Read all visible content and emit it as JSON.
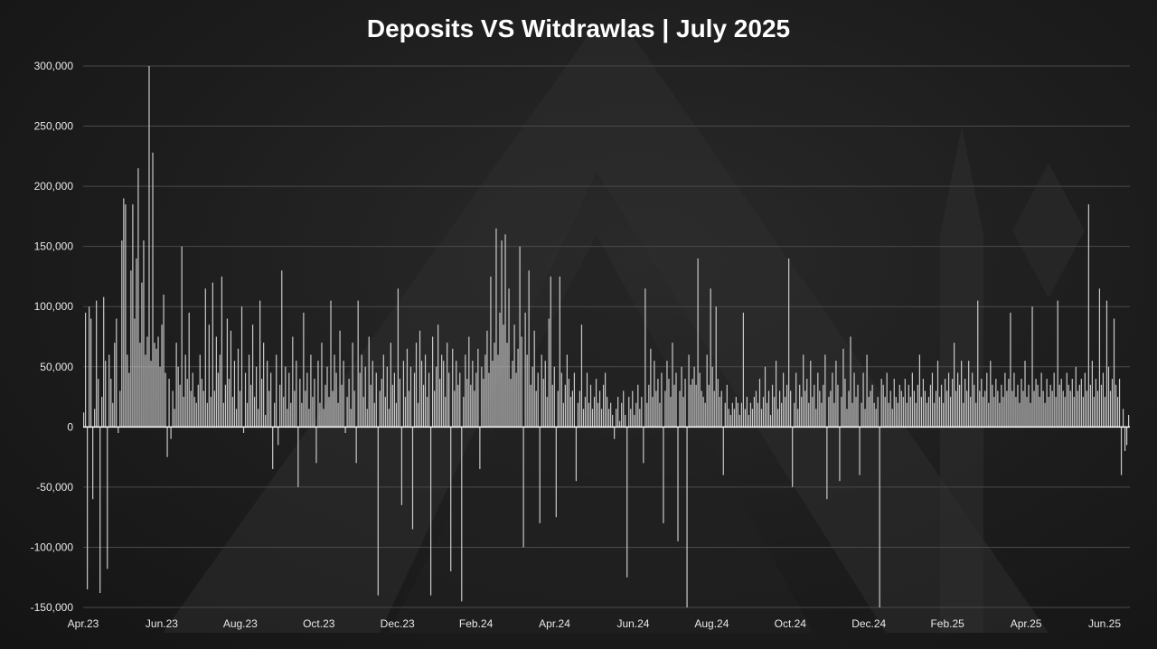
{
  "colors": {
    "background": "#1c1c1c",
    "bar": "#c8c8c8",
    "gridline": "#4a4a4a",
    "zero_line": "#ffffff",
    "text": "#ffffff"
  },
  "chart_data": {
    "type": "bar",
    "title": "Deposits VS Witdrawlas | July 2025",
    "xlabel": "",
    "ylabel": "",
    "ylim": [
      -150000,
      300000
    ],
    "y_ticks": [
      "300,000",
      "250,000",
      "200,000",
      "150,000",
      "100,000",
      "50,000",
      "0",
      "-50,000",
      "-100,000",
      "-150,000"
    ],
    "x_ticks": [
      "Apr.23",
      "Jun.23",
      "Aug.23",
      "Oct.23",
      "Dec.23",
      "Feb.24",
      "Apr.24",
      "Jun.24",
      "Aug.24",
      "Oct.24",
      "Dec.24",
      "Feb.25",
      "Apr.25",
      "Jun.25"
    ],
    "grid": true,
    "legend": "none",
    "series": [
      {
        "values": [
          12000,
          95000,
          -135000,
          100000,
          90000,
          -60000,
          15000,
          105000,
          40000,
          -138000,
          25000,
          108000,
          55000,
          -118000,
          60000,
          40000,
          20000,
          70000,
          90000,
          -5000,
          30000,
          155000,
          190000,
          185000,
          60000,
          45000,
          130000,
          185000,
          90000,
          140000,
          215000,
          70000,
          120000,
          155000,
          60000,
          75000,
          300000,
          55000,
          228000,
          70000,
          65000,
          75000,
          50000,
          85000,
          110000,
          45000,
          -25000,
          40000,
          -10000,
          30000,
          15000,
          70000,
          50000,
          35000,
          150000,
          25000,
          60000,
          40000,
          95000,
          30000,
          45000,
          25000,
          20000,
          35000,
          60000,
          40000,
          30000,
          115000,
          20000,
          85000,
          25000,
          120000,
          30000,
          75000,
          45000,
          60000,
          125000,
          20000,
          35000,
          90000,
          40000,
          80000,
          25000,
          55000,
          15000,
          65000,
          30000,
          100000,
          -5000,
          45000,
          20000,
          60000,
          35000,
          85000,
          25000,
          50000,
          15000,
          105000,
          40000,
          70000,
          10000,
          55000,
          30000,
          45000,
          -35000,
          20000,
          60000,
          -15000,
          35000,
          130000,
          25000,
          50000,
          15000,
          45000,
          20000,
          75000,
          30000,
          55000,
          -50000,
          40000,
          20000,
          95000,
          30000,
          45000,
          15000,
          60000,
          25000,
          40000,
          -30000,
          55000,
          20000,
          70000,
          15000,
          35000,
          50000,
          25000,
          105000,
          30000,
          60000,
          45000,
          20000,
          80000,
          35000,
          55000,
          -5000,
          25000,
          40000,
          15000,
          70000,
          30000,
          -30000,
          105000,
          45000,
          60000,
          25000,
          50000,
          15000,
          75000,
          35000,
          55000,
          20000,
          45000,
          -140000,
          30000,
          40000,
          60000,
          25000,
          50000,
          15000,
          70000,
          35000,
          45000,
          20000,
          115000,
          40000,
          -65000,
          55000,
          25000,
          65000,
          30000,
          50000,
          -85000,
          45000,
          70000,
          20000,
          80000,
          55000,
          35000,
          60000,
          25000,
          45000,
          -140000,
          75000,
          30000,
          50000,
          85000,
          40000,
          60000,
          55000,
          25000,
          70000,
          45000,
          -120000,
          65000,
          30000,
          55000,
          35000,
          45000,
          -145000,
          25000,
          60000,
          40000,
          75000,
          35000,
          55000,
          30000,
          45000,
          65000,
          -35000,
          50000,
          40000,
          60000,
          80000,
          45000,
          125000,
          55000,
          70000,
          165000,
          60000,
          95000,
          155000,
          85000,
          160000,
          70000,
          115000,
          40000,
          55000,
          85000,
          45000,
          65000,
          150000,
          75000,
          -100000,
          95000,
          60000,
          130000,
          35000,
          50000,
          80000,
          30000,
          45000,
          -80000,
          60000,
          40000,
          55000,
          25000,
          90000,
          125000,
          35000,
          50000,
          -75000,
          30000,
          125000,
          45000,
          20000,
          35000,
          60000,
          40000,
          25000,
          30000,
          45000,
          -45000,
          20000,
          30000,
          85000,
          15000,
          25000,
          45000,
          20000,
          35000,
          15000,
          25000,
          40000,
          20000,
          30000,
          15000,
          35000,
          45000,
          25000,
          15000,
          20000,
          10000,
          -10000,
          15000,
          25000,
          5000,
          20000,
          30000,
          10000,
          -125000,
          25000,
          15000,
          30000,
          10000,
          20000,
          35000,
          15000,
          25000,
          -30000,
          115000,
          20000,
          35000,
          65000,
          25000,
          55000,
          30000,
          40000,
          20000,
          45000,
          -80000,
          30000,
          55000,
          40000,
          25000,
          70000,
          35000,
          45000,
          -95000,
          30000,
          50000,
          25000,
          40000,
          -150000,
          60000,
          35000,
          40000,
          50000,
          35000,
          140000,
          45000,
          30000,
          25000,
          20000,
          60000,
          35000,
          115000,
          50000,
          30000,
          100000,
          40000,
          25000,
          30000,
          -40000,
          20000,
          35000,
          15000,
          10000,
          20000,
          15000,
          25000,
          20000,
          10000,
          20000,
          95000,
          15000,
          25000,
          10000,
          20000,
          15000,
          25000,
          30000,
          20000,
          40000,
          15000,
          25000,
          50000,
          20000,
          30000,
          10000,
          35000,
          25000,
          55000,
          15000,
          30000,
          20000,
          45000,
          25000,
          35000,
          140000,
          30000,
          -50000,
          20000,
          45000,
          15000,
          35000,
          25000,
          60000,
          30000,
          40000,
          20000,
          55000,
          25000,
          35000,
          15000,
          45000,
          30000,
          20000,
          35000,
          60000,
          -60000,
          25000,
          30000,
          45000,
          20000,
          55000,
          35000,
          -45000,
          25000,
          65000,
          40000,
          15000,
          30000,
          75000,
          20000,
          45000,
          25000,
          35000,
          -40000,
          20000,
          45000,
          15000,
          60000,
          25000,
          30000,
          35000,
          20000,
          15000,
          25000,
          -150000,
          40000,
          35000,
          25000,
          45000,
          20000,
          30000,
          15000,
          40000,
          25000,
          20000,
          35000,
          30000,
          25000,
          40000,
          20000,
          35000,
          25000,
          45000,
          30000,
          20000,
          35000,
          60000,
          25000,
          40000,
          30000,
          20000,
          25000,
          35000,
          45000,
          20000,
          30000,
          55000,
          25000,
          35000,
          20000,
          40000,
          30000,
          45000,
          25000,
          40000,
          70000,
          30000,
          45000,
          35000,
          55000,
          20000,
          40000,
          30000,
          55000,
          25000,
          45000,
          35000,
          20000,
          105000,
          30000,
          40000,
          25000,
          30000,
          45000,
          20000,
          55000,
          35000,
          25000,
          40000,
          30000,
          20000,
          35000,
          25000,
          45000,
          30000,
          40000,
          95000,
          30000,
          45000,
          25000,
          35000,
          20000,
          40000,
          30000,
          55000,
          25000,
          35000,
          20000,
          100000,
          30000,
          40000,
          35000,
          25000,
          45000,
          30000,
          20000,
          40000,
          25000,
          35000,
          30000,
          45000,
          25000,
          105000,
          35000,
          40000,
          30000,
          25000,
          45000,
          35000,
          30000,
          40000,
          25000,
          50000,
          30000,
          35000,
          40000,
          25000,
          45000,
          30000,
          185000,
          35000,
          55000,
          25000,
          40000,
          30000,
          115000,
          35000,
          45000,
          25000,
          105000,
          50000,
          30000,
          40000,
          90000,
          35000,
          25000,
          40000,
          -40000,
          15000,
          -20000,
          -15000,
          10000
        ]
      }
    ]
  }
}
